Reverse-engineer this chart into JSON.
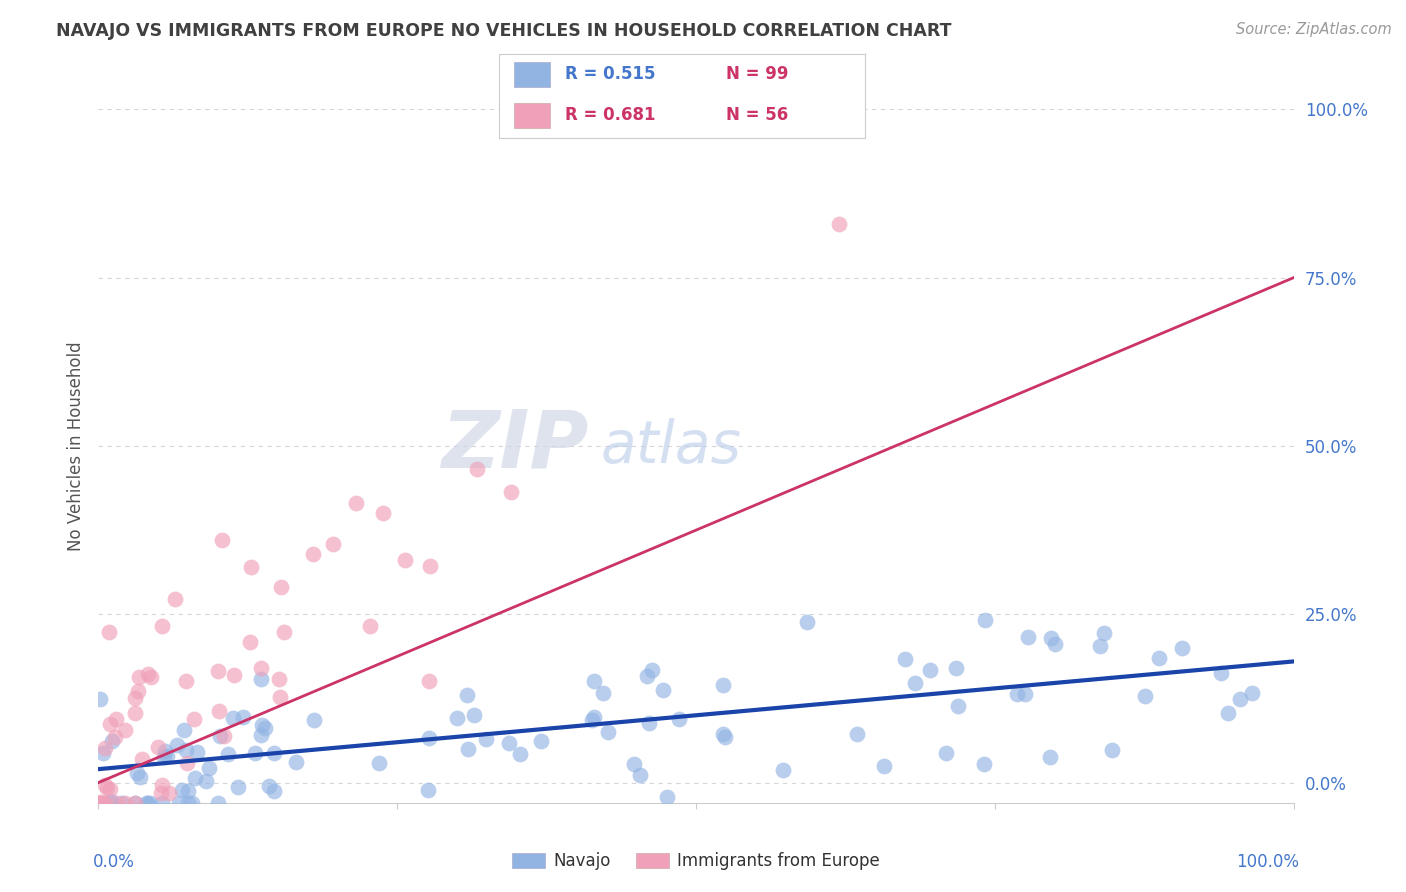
{
  "title": "NAVAJO VS IMMIGRANTS FROM EUROPE NO VEHICLES IN HOUSEHOLD CORRELATION CHART",
  "source": "Source: ZipAtlas.com",
  "ylabel": "No Vehicles in Household",
  "ytick_labels": [
    "0.0%",
    "25.0%",
    "50.0%",
    "75.0%",
    "100.0%"
  ],
  "ytick_values": [
    0,
    25,
    50,
    75,
    100
  ],
  "xlim": [
    0,
    100
  ],
  "ylim": [
    -3,
    103
  ],
  "navajo_R": 0.515,
  "navajo_N": 99,
  "europe_R": 0.681,
  "europe_N": 56,
  "navajo_color": "#92b4e3",
  "europe_color": "#f0a0b8",
  "navajo_line_color": "#1a44aa",
  "europe_line_color": "#cc3366",
  "legend_label_navajo": "Navajo",
  "legend_label_europe": "Immigrants from Europe",
  "watermark_zip": "ZIP",
  "watermark_atlas": "atlas",
  "background_color": "#ffffff",
  "grid_color": "#cccccc",
  "title_color": "#404040",
  "source_color": "#999999",
  "navajo_trend_start_y": 2.0,
  "navajo_trend_end_y": 18.0,
  "europe_trend_start_y": 0.0,
  "europe_trend_end_y": 75.0
}
